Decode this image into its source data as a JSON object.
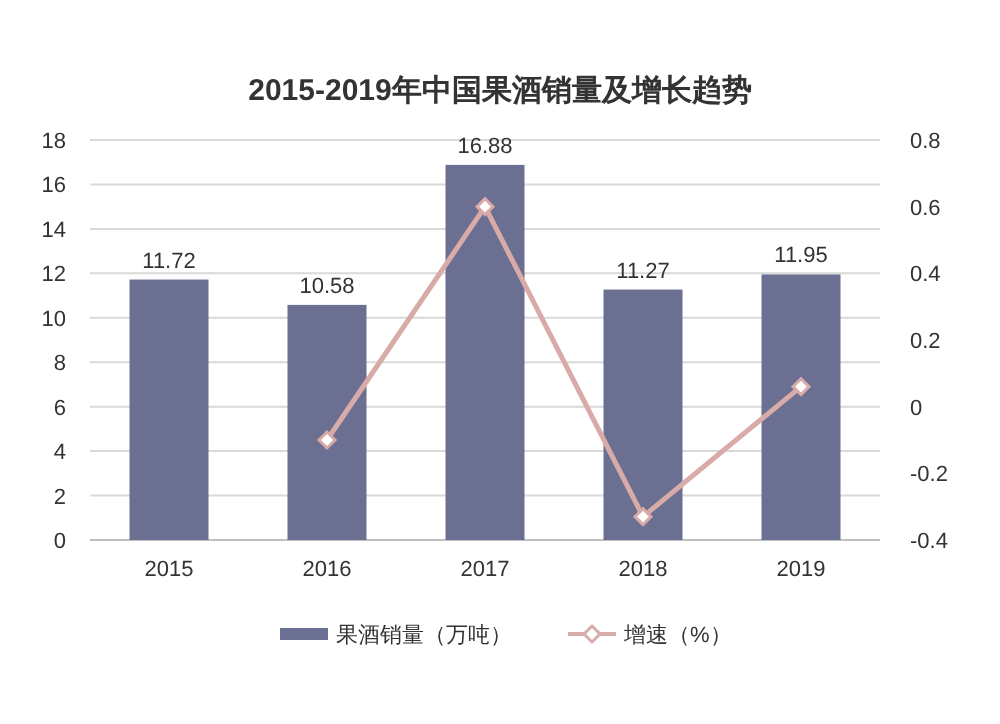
{
  "chart_data": {
    "type": "bar",
    "title": "2015-2019年中国果酒销量及增长趋势",
    "categories": [
      "2015",
      "2016",
      "2017",
      "2018",
      "2019"
    ],
    "series": [
      {
        "name": "果酒销量（万吨）",
        "color": "#6b6f92",
        "values": [
          11.72,
          10.58,
          16.88,
          11.27,
          11.95
        ],
        "value_labels": [
          "11.72",
          "10.58",
          "16.88",
          "11.27",
          "11.95"
        ]
      },
      {
        "name": "增速（%）",
        "type": "line",
        "axis": "y2",
        "color": "#d8aaa8",
        "marker": "diamond",
        "values": [
          null,
          -0.1,
          0.6,
          -0.33,
          0.06
        ]
      }
    ],
    "ylim": [
      0,
      18
    ],
    "yticks": [
      0,
      2,
      4,
      6,
      8,
      10,
      12,
      14,
      16,
      18
    ],
    "y2lim": [
      -0.4,
      0.8
    ],
    "y2ticks": [
      -0.4,
      -0.2,
      0,
      0.2,
      0.4,
      0.6,
      0.8
    ],
    "grid": "y",
    "legend": "bottom"
  }
}
